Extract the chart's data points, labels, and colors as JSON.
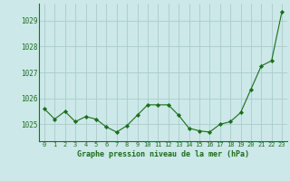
{
  "x": [
    0,
    1,
    2,
    3,
    4,
    5,
    6,
    7,
    8,
    9,
    10,
    11,
    12,
    13,
    14,
    15,
    16,
    17,
    18,
    19,
    20,
    21,
    22,
    23
  ],
  "y": [
    1025.6,
    1025.2,
    1025.5,
    1025.1,
    1025.3,
    1025.2,
    1024.9,
    1024.7,
    1024.95,
    1025.35,
    1025.75,
    1025.75,
    1025.75,
    1025.35,
    1024.85,
    1024.75,
    1024.7,
    1025.0,
    1025.1,
    1025.45,
    1026.35,
    1027.25,
    1027.45,
    1029.35
  ],
  "line_color": "#1a6e1a",
  "marker_color": "#1a6e1a",
  "bg_color": "#cce8e8",
  "grid_color": "#aacccc",
  "xlabel": "Graphe pression niveau de la mer (hPa)",
  "xlabel_color": "#1a6e1a",
  "ylabel_ticks": [
    1025,
    1026,
    1027,
    1028,
    1029
  ],
  "ylim": [
    1024.35,
    1029.65
  ],
  "xlim": [
    -0.5,
    23.5
  ]
}
